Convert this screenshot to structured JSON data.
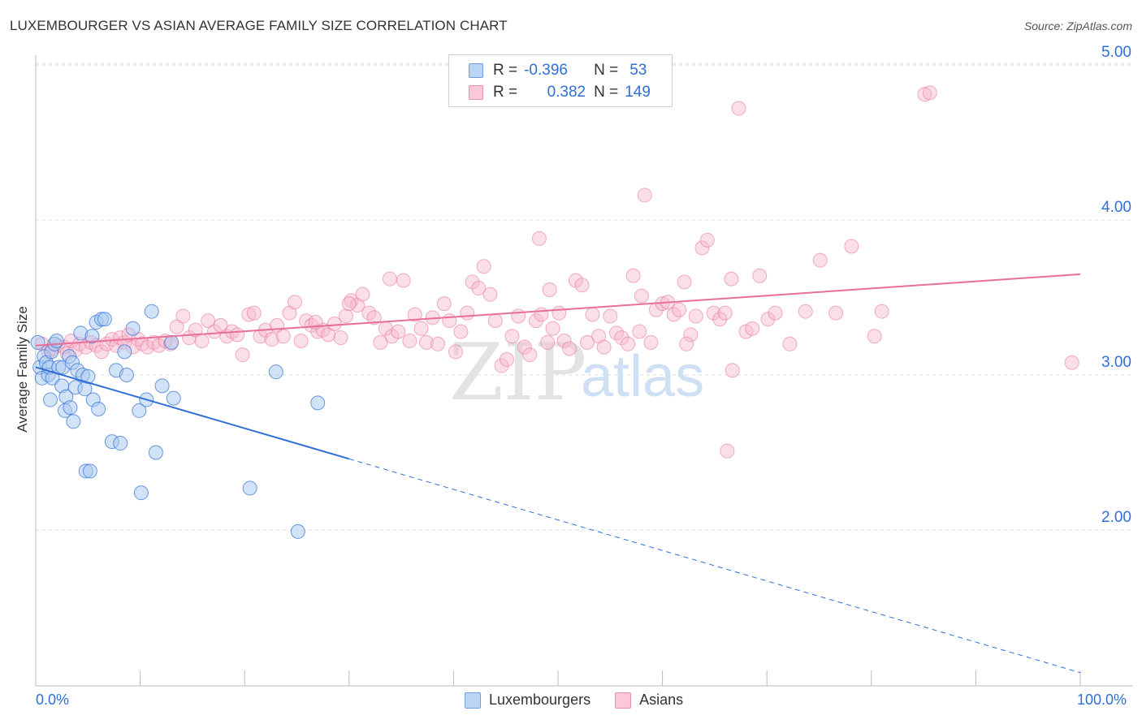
{
  "header": {
    "title": "LUXEMBOURGER VS ASIAN AVERAGE FAMILY SIZE CORRELATION CHART",
    "source": "Source: ZipAtlas.com"
  },
  "legend_top": {
    "row1": {
      "r_label": "R =",
      "r_value": "-0.396",
      "n_label": "N =",
      "n_value": "53"
    },
    "row2": {
      "r_label": "R =",
      "r_value": "0.382",
      "n_label": "N =",
      "n_value": "149"
    }
  },
  "legend_bottom": {
    "luxembourgers": "Luxembourgers",
    "asians": "Asians"
  },
  "axis": {
    "x_min_label": "0.0%",
    "x_max_label": "100.0%",
    "y_label": "Average Family Size"
  },
  "watermark": {
    "zip": "ZIP",
    "atlas": "atlas"
  },
  "colors": {
    "blue": "#2f6fd6",
    "blue_fill": "#a8c8f0",
    "pink": "#e86f99",
    "pink_fill": "#f7b8cc",
    "grid": "#dddddd"
  },
  "chart_data": {
    "type": "scatter",
    "title": "LUXEMBOURGER VS ASIAN AVERAGE FAMILY SIZE CORRELATION CHART",
    "xlabel": "",
    "ylabel": "Average Family Size",
    "xlim": [
      0,
      100
    ],
    "ylim": [
      1.05,
      5.1
    ],
    "yticks": [
      2.0,
      3.0,
      4.0,
      5.0
    ],
    "ytick_labels": [
      "2.00",
      "3.00",
      "4.00",
      "5.00"
    ],
    "xtick_labels": [
      "0.0%",
      "100.0%"
    ],
    "grid": true,
    "legend_position": "bottom",
    "series": [
      {
        "name": "Luxembourgers",
        "color": "#2f6fd6",
        "r": -0.396,
        "n": 53,
        "trend": {
          "x0": 0,
          "y0": 3.05,
          "x1": 100,
          "y1": 1.08,
          "solid_until": 30
        },
        "points": [
          [
            0.2,
            3.21
          ],
          [
            0.4,
            3.05
          ],
          [
            0.6,
            2.98
          ],
          [
            0.8,
            3.12
          ],
          [
            1.0,
            3.08
          ],
          [
            1.2,
            3.0
          ],
          [
            1.3,
            3.05
          ],
          [
            1.5,
            3.15
          ],
          [
            1.6,
            2.98
          ],
          [
            1.8,
            3.2
          ],
          [
            2.0,
            3.22
          ],
          [
            2.2,
            3.05
          ],
          [
            1.4,
            2.84
          ],
          [
            2.5,
            2.93
          ],
          [
            2.6,
            3.05
          ],
          [
            2.8,
            2.77
          ],
          [
            2.9,
            2.86
          ],
          [
            3.2,
            3.12
          ],
          [
            3.3,
            2.79
          ],
          [
            3.5,
            3.08
          ],
          [
            3.6,
            2.7
          ],
          [
            3.8,
            2.92
          ],
          [
            4.0,
            3.03
          ],
          [
            4.3,
            3.27
          ],
          [
            4.5,
            3.0
          ],
          [
            4.7,
            2.91
          ],
          [
            4.8,
            2.38
          ],
          [
            5.0,
            2.99
          ],
          [
            5.2,
            2.38
          ],
          [
            5.4,
            3.25
          ],
          [
            5.5,
            2.84
          ],
          [
            5.8,
            3.34
          ],
          [
            6.0,
            2.78
          ],
          [
            6.3,
            3.36
          ],
          [
            6.6,
            3.36
          ],
          [
            7.3,
            2.57
          ],
          [
            7.7,
            3.03
          ],
          [
            8.1,
            2.56
          ],
          [
            8.5,
            3.15
          ],
          [
            8.7,
            3.0
          ],
          [
            9.3,
            3.3
          ],
          [
            9.9,
            2.77
          ],
          [
            10.1,
            2.24
          ],
          [
            10.6,
            2.84
          ],
          [
            11.1,
            3.41
          ],
          [
            11.5,
            2.5
          ],
          [
            12.1,
            2.93
          ],
          [
            13.0,
            3.21
          ],
          [
            13.2,
            2.85
          ],
          [
            20.5,
            2.27
          ],
          [
            23.0,
            3.02
          ],
          [
            25.1,
            1.99
          ],
          [
            27.0,
            2.82
          ]
        ]
      },
      {
        "name": "Asians",
        "color": "#e86f99",
        "r": 0.382,
        "n": 149,
        "trend": {
          "x0": 0,
          "y0": 3.19,
          "x1": 100,
          "y1": 3.65
        },
        "points": [
          [
            0.6,
            3.2
          ],
          [
            1.2,
            3.15
          ],
          [
            1.6,
            3.17
          ],
          [
            2.1,
            3.19
          ],
          [
            2.7,
            3.18
          ],
          [
            3.0,
            3.14
          ],
          [
            3.4,
            3.22
          ],
          [
            3.8,
            3.16
          ],
          [
            4.2,
            3.2
          ],
          [
            4.8,
            3.18
          ],
          [
            5.3,
            3.21
          ],
          [
            5.8,
            3.19
          ],
          [
            6.3,
            3.15
          ],
          [
            6.8,
            3.2
          ],
          [
            7.3,
            3.23
          ],
          [
            7.7,
            3.19
          ],
          [
            8.1,
            3.24
          ],
          [
            8.5,
            3.21
          ],
          [
            8.9,
            3.26
          ],
          [
            9.3,
            3.18
          ],
          [
            9.8,
            3.23
          ],
          [
            10.2,
            3.2
          ],
          [
            10.7,
            3.18
          ],
          [
            11.3,
            3.21
          ],
          [
            11.8,
            3.19
          ],
          [
            12.4,
            3.22
          ],
          [
            12.9,
            3.2
          ],
          [
            13.5,
            3.31
          ],
          [
            14.1,
            3.38
          ],
          [
            14.7,
            3.24
          ],
          [
            15.3,
            3.29
          ],
          [
            15.9,
            3.22
          ],
          [
            16.5,
            3.35
          ],
          [
            17.1,
            3.28
          ],
          [
            17.7,
            3.32
          ],
          [
            18.3,
            3.25
          ],
          [
            18.8,
            3.28
          ],
          [
            19.3,
            3.26
          ],
          [
            19.8,
            3.13
          ],
          [
            20.4,
            3.39
          ],
          [
            20.9,
            3.4
          ],
          [
            21.5,
            3.25
          ],
          [
            22.0,
            3.29
          ],
          [
            22.6,
            3.23
          ],
          [
            23.1,
            3.32
          ],
          [
            23.7,
            3.25
          ],
          [
            24.3,
            3.4
          ],
          [
            24.8,
            3.47
          ],
          [
            25.4,
            3.22
          ],
          [
            25.9,
            3.35
          ],
          [
            26.4,
            3.32
          ],
          [
            27.0,
            3.28
          ],
          [
            27.5,
            3.29
          ],
          [
            28.0,
            3.26
          ],
          [
            28.6,
            3.33
          ],
          [
            29.2,
            3.24
          ],
          [
            29.7,
            3.38
          ],
          [
            30.2,
            3.48
          ],
          [
            30.8,
            3.45
          ],
          [
            31.3,
            3.52
          ],
          [
            31.9,
            3.4
          ],
          [
            32.4,
            3.37
          ],
          [
            33.0,
            3.21
          ],
          [
            33.5,
            3.3
          ],
          [
            34.1,
            3.25
          ],
          [
            34.7,
            3.28
          ],
          [
            35.2,
            3.61
          ],
          [
            35.8,
            3.22
          ],
          [
            36.3,
            3.39
          ],
          [
            36.9,
            3.3
          ],
          [
            37.4,
            3.21
          ],
          [
            38.0,
            3.37
          ],
          [
            38.5,
            3.2
          ],
          [
            39.1,
            3.46
          ],
          [
            39.6,
            3.35
          ],
          [
            40.2,
            3.15
          ],
          [
            40.7,
            3.28
          ],
          [
            41.3,
            3.4
          ],
          [
            41.8,
            3.6
          ],
          [
            42.4,
            3.56
          ],
          [
            42.9,
            3.7
          ],
          [
            43.5,
            3.52
          ],
          [
            44.0,
            3.35
          ],
          [
            44.6,
            3.06
          ],
          [
            45.1,
            3.1
          ],
          [
            45.6,
            3.25
          ],
          [
            46.2,
            3.38
          ],
          [
            46.8,
            3.18
          ],
          [
            47.3,
            3.13
          ],
          [
            47.9,
            3.35
          ],
          [
            48.4,
            3.39
          ],
          [
            49.0,
            3.21
          ],
          [
            49.5,
            3.3
          ],
          [
            50.1,
            3.4
          ],
          [
            50.6,
            3.22
          ],
          [
            51.1,
            3.17
          ],
          [
            51.7,
            3.61
          ],
          [
            52.3,
            3.58
          ],
          [
            52.8,
            3.21
          ],
          [
            53.3,
            3.39
          ],
          [
            53.9,
            3.25
          ],
          [
            54.4,
            3.18
          ],
          [
            55.0,
            3.38
          ],
          [
            55.6,
            3.27
          ],
          [
            56.1,
            3.24
          ],
          [
            56.7,
            3.2
          ],
          [
            57.2,
            3.64
          ],
          [
            57.8,
            3.28
          ],
          [
            58.3,
            4.16
          ],
          [
            58.9,
            3.21
          ],
          [
            59.4,
            3.42
          ],
          [
            60.0,
            3.46
          ],
          [
            60.5,
            3.47
          ],
          [
            61.1,
            3.39
          ],
          [
            61.6,
            3.42
          ],
          [
            62.1,
            3.6
          ],
          [
            62.7,
            3.26
          ],
          [
            63.2,
            3.38
          ],
          [
            63.8,
            3.82
          ],
          [
            64.3,
            3.87
          ],
          [
            64.9,
            3.4
          ],
          [
            65.5,
            3.36
          ],
          [
            66.0,
            3.4
          ],
          [
            66.6,
            3.62
          ],
          [
            67.3,
            4.72
          ],
          [
            68.0,
            3.28
          ],
          [
            68.6,
            3.3
          ],
          [
            69.3,
            3.64
          ],
          [
            70.1,
            3.36
          ],
          [
            70.8,
            3.4
          ],
          [
            72.2,
            3.2
          ],
          [
            73.7,
            3.41
          ],
          [
            75.1,
            3.74
          ],
          [
            76.6,
            3.4
          ],
          [
            78.1,
            3.83
          ],
          [
            80.3,
            3.25
          ],
          [
            81.0,
            3.41
          ],
          [
            85.1,
            4.81
          ],
          [
            85.6,
            4.82
          ],
          [
            99.2,
            3.08
          ],
          [
            66.7,
            3.03
          ],
          [
            66.2,
            2.51
          ],
          [
            48.2,
            3.88
          ],
          [
            62.3,
            3.2
          ],
          [
            26.8,
            3.34
          ],
          [
            30.0,
            3.46
          ],
          [
            33.9,
            3.62
          ],
          [
            49.2,
            3.55
          ],
          [
            58.0,
            3.51
          ]
        ]
      }
    ]
  }
}
